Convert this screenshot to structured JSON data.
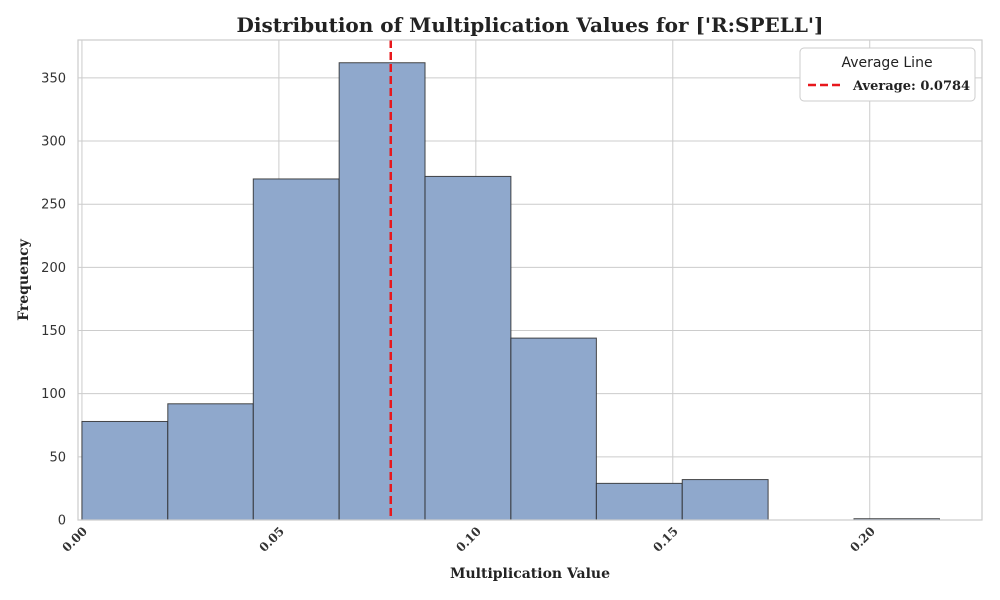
{
  "chart_data": {
    "type": "bar",
    "title": "Distribution of Multiplication Values for ['R:SPELL']",
    "xlabel": "Multiplication Value",
    "ylabel": "Frequency",
    "xlim": [
      -0.001,
      0.2285
    ],
    "ylim": [
      0,
      380
    ],
    "x_ticks": [
      0.0,
      0.05,
      0.1,
      0.15,
      0.2
    ],
    "x_tick_labels": [
      "0.00",
      "0.05",
      "0.10",
      "0.15",
      "0.20"
    ],
    "y_ticks": [
      0,
      50,
      100,
      150,
      200,
      250,
      300,
      350
    ],
    "bins": [
      {
        "start": 0.0,
        "end": 0.0218,
        "count": 78
      },
      {
        "start": 0.0218,
        "end": 0.0435,
        "count": 92
      },
      {
        "start": 0.0435,
        "end": 0.0653,
        "count": 270
      },
      {
        "start": 0.0653,
        "end": 0.0871,
        "count": 362
      },
      {
        "start": 0.0871,
        "end": 0.1089,
        "count": 272
      },
      {
        "start": 0.1089,
        "end": 0.1306,
        "count": 144
      },
      {
        "start": 0.1306,
        "end": 0.1524,
        "count": 29
      },
      {
        "start": 0.1524,
        "end": 0.1742,
        "count": 32
      },
      {
        "start": 0.1742,
        "end": 0.196,
        "count": 0
      },
      {
        "start": 0.196,
        "end": 0.2177,
        "count": 1
      }
    ],
    "bar_color": "#8fa8cc",
    "bar_edge_color": "#2a2a2a",
    "average": {
      "value": 0.0784,
      "label": "Average: 0.0784",
      "color": "#e8171c"
    },
    "legend": {
      "title": "Average Line",
      "position": "top-right"
    },
    "grid": true
  }
}
